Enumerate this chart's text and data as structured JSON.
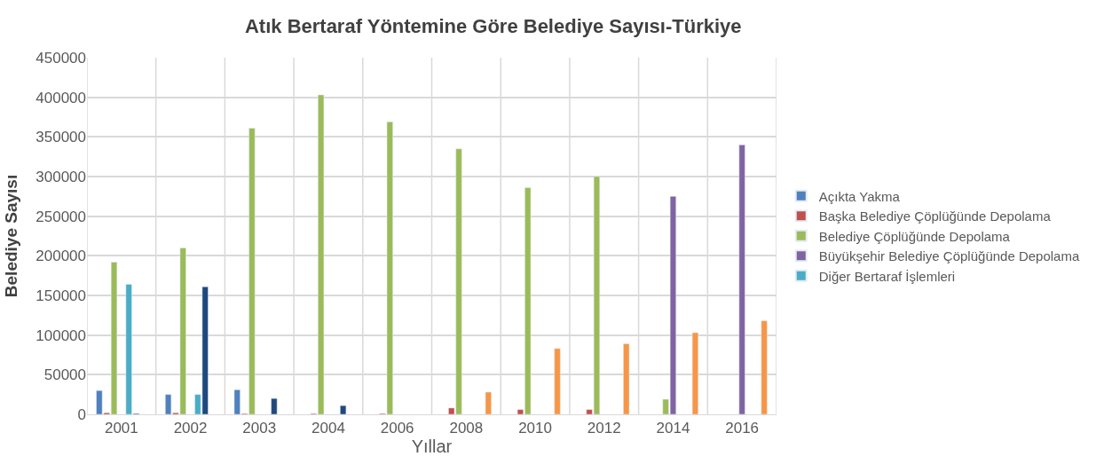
{
  "chart_data": {
    "type": "bar",
    "title": "Atık Bertaraf Yöntemine Göre Belediye Sayısı-Türkiye",
    "xlabel": "Yıllar",
    "ylabel": "Belediye Sayısı",
    "categories": [
      "2001",
      "2002",
      "2003",
      "2004",
      "2006",
      "2008",
      "2010",
      "2012",
      "2014",
      "2016"
    ],
    "series": [
      {
        "name": "Açıkta Yakma",
        "color": "#4f81bd",
        "values": [
          30000,
          25000,
          31000,
          null,
          null,
          null,
          null,
          null,
          null,
          null
        ]
      },
      {
        "name": "Başka Belediye Çöplüğünde Depolama",
        "color": "#c0504d",
        "values": [
          2000,
          2000,
          1000,
          1000,
          1000,
          8000,
          6000,
          6000,
          null,
          null
        ]
      },
      {
        "name": "Belediye Çöplüğünde Depolama",
        "color": "#9bbb59",
        "values": [
          192000,
          210000,
          361000,
          403000,
          369000,
          335000,
          286000,
          300000,
          19000,
          null
        ]
      },
      {
        "name": "Büyükşehir Belediye Çöplüğünde Depolama",
        "color": "#8064a2",
        "values": [
          null,
          null,
          null,
          null,
          null,
          null,
          null,
          null,
          275000,
          340000
        ]
      },
      {
        "name": "Diğer Bertaraf İşlemleri",
        "color": "#4bacc6",
        "values": [
          164000,
          25000,
          null,
          null,
          null,
          null,
          null,
          null,
          null,
          null
        ]
      },
      {
        "color": "#1f497d",
        "values": [
          1000,
          161000,
          20000,
          11000,
          null,
          null,
          null,
          null,
          null,
          null
        ]
      },
      {
        "color": "#f79646",
        "values": [
          null,
          null,
          null,
          null,
          null,
          28000,
          83000,
          89000,
          103000,
          118000
        ]
      }
    ],
    "ylim": [
      0,
      450000
    ],
    "yticks": [
      0,
      50000,
      100000,
      150000,
      200000,
      250000,
      300000,
      350000,
      400000,
      450000
    ],
    "grid": true,
    "legend": "right"
  }
}
